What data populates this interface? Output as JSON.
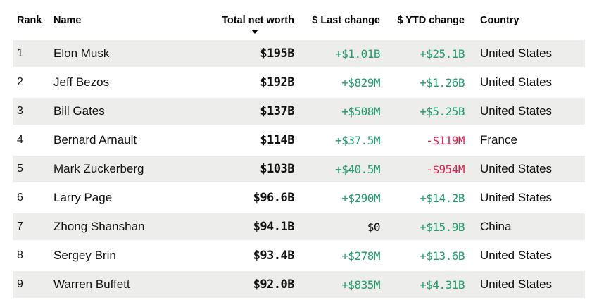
{
  "table": {
    "columns": [
      {
        "key": "rank",
        "label": "Rank"
      },
      {
        "key": "name",
        "label": "Name"
      },
      {
        "key": "net_worth",
        "label": "Total net worth",
        "sorted_desc": true
      },
      {
        "key": "last_change",
        "label": "$ Last change"
      },
      {
        "key": "ytd_change",
        "label": "$ YTD change"
      },
      {
        "key": "country",
        "label": "Country"
      }
    ],
    "rows": [
      {
        "rank": "1",
        "name": "Elon Musk",
        "net_worth": "$195B",
        "last_change": "+$1.01B",
        "ytd_change": "+$25.1B",
        "country": "United States"
      },
      {
        "rank": "2",
        "name": "Jeff Bezos",
        "net_worth": "$192B",
        "last_change": "+$829M",
        "ytd_change": "+$1.26B",
        "country": "United States"
      },
      {
        "rank": "3",
        "name": "Bill Gates",
        "net_worth": "$137B",
        "last_change": "+$508M",
        "ytd_change": "+$5.25B",
        "country": "United States"
      },
      {
        "rank": "4",
        "name": "Bernard Arnault",
        "net_worth": "$114B",
        "last_change": "+$37.5M",
        "ytd_change": "-$119M",
        "country": "France"
      },
      {
        "rank": "5",
        "name": "Mark Zuckerberg",
        "net_worth": "$103B",
        "last_change": "+$40.5M",
        "ytd_change": "-$954M",
        "country": "United States"
      },
      {
        "rank": "6",
        "name": "Larry Page",
        "net_worth": "$96.6B",
        "last_change": "+$290M",
        "ytd_change": "+$14.2B",
        "country": "United States"
      },
      {
        "rank": "7",
        "name": "Zhong Shanshan",
        "net_worth": "$94.1B",
        "last_change": "$0",
        "ytd_change": "+$15.9B",
        "country": "China"
      },
      {
        "rank": "8",
        "name": "Sergey Brin",
        "net_worth": "$93.4B",
        "last_change": "+$278M",
        "ytd_change": "+$13.6B",
        "country": "United States"
      },
      {
        "rank": "9",
        "name": "Warren Buffett",
        "net_worth": "$92.0B",
        "last_change": "+$835M",
        "ytd_change": "+$4.31B",
        "country": "United States"
      }
    ]
  },
  "colors": {
    "positive": "#1f9d6d",
    "negative": "#d6234d",
    "neutral_text": "#111111",
    "row_band": "#ededeb",
    "header_text": "#000000"
  }
}
